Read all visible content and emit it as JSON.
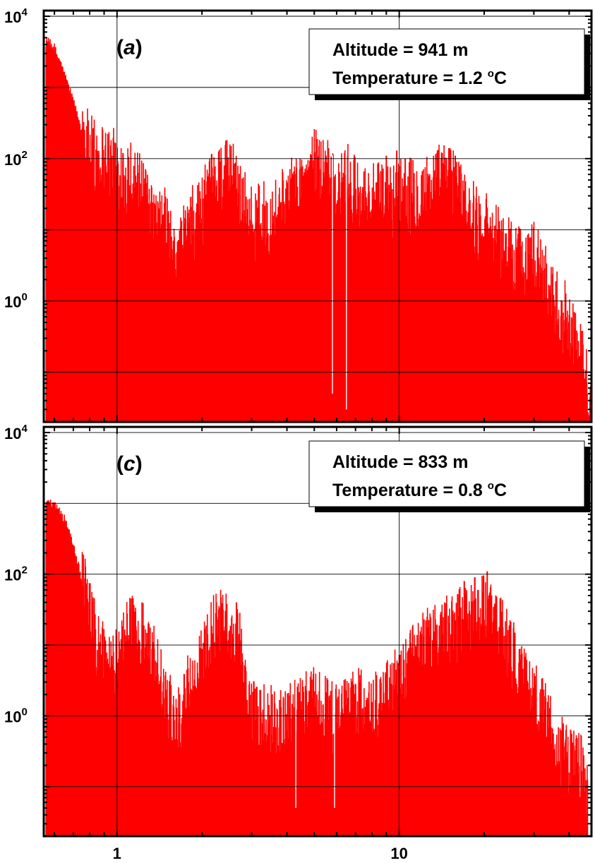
{
  "chart_data": [
    {
      "type": "bar",
      "panel_label": "a",
      "annotation": {
        "altitude_text": "Altitude = 941 m",
        "temperature_prefix": "Temperature = 1.2 ",
        "temperature_sup": "o",
        "temperature_suffix": "C"
      },
      "x_scale": "log",
      "xlim": [
        0.55,
        48
      ],
      "y_scale": "log",
      "ylim": [
        0.02,
        12000
      ],
      "grid": true,
      "ytick_labels": [
        {
          "value": 10000,
          "base": "10",
          "exp": "4"
        },
        {
          "value": 100,
          "base": "10",
          "exp": "2"
        },
        {
          "value": 1,
          "base": "10",
          "exp": "0"
        }
      ],
      "envelope": [
        {
          "x": 0.56,
          "y": 4500
        },
        {
          "x": 0.6,
          "y": 3500
        },
        {
          "x": 0.65,
          "y": 1500
        },
        {
          "x": 0.7,
          "y": 600
        },
        {
          "x": 0.75,
          "y": 250
        },
        {
          "x": 0.8,
          "y": 120
        },
        {
          "x": 0.9,
          "y": 100
        },
        {
          "x": 1.0,
          "y": 70
        },
        {
          "x": 1.1,
          "y": 60
        },
        {
          "x": 1.2,
          "y": 35
        },
        {
          "x": 1.3,
          "y": 15
        },
        {
          "x": 1.4,
          "y": 10
        },
        {
          "x": 1.5,
          "y": 12
        },
        {
          "x": 1.6,
          "y": 3
        },
        {
          "x": 1.8,
          "y": 10
        },
        {
          "x": 2.0,
          "y": 20
        },
        {
          "x": 2.3,
          "y": 50
        },
        {
          "x": 2.6,
          "y": 60
        },
        {
          "x": 3.0,
          "y": 12
        },
        {
          "x": 3.5,
          "y": 15
        },
        {
          "x": 4.0,
          "y": 25
        },
        {
          "x": 4.5,
          "y": 40
        },
        {
          "x": 5.0,
          "y": 80
        },
        {
          "x": 5.5,
          "y": 60
        },
        {
          "x": 6.0,
          "y": 25
        },
        {
          "x": 6.5,
          "y": 50
        },
        {
          "x": 7.0,
          "y": 30
        },
        {
          "x": 8.0,
          "y": 25
        },
        {
          "x": 9.0,
          "y": 25
        },
        {
          "x": 10.0,
          "y": 30
        },
        {
          "x": 12.0,
          "y": 30
        },
        {
          "x": 14.0,
          "y": 50
        },
        {
          "x": 16.0,
          "y": 40
        },
        {
          "x": 18.0,
          "y": 15
        },
        {
          "x": 20.0,
          "y": 12
        },
        {
          "x": 25.0,
          "y": 4
        },
        {
          "x": 30.0,
          "y": 4
        },
        {
          "x": 35.0,
          "y": 1
        },
        {
          "x": 40.0,
          "y": 0.5
        },
        {
          "x": 45.0,
          "y": 0.1
        },
        {
          "x": 48.0,
          "y": 0.03
        }
      ],
      "peaks": [
        {
          "x": 1.05,
          "y": 120
        },
        {
          "x": 2.4,
          "y": 80
        },
        {
          "x": 2.6,
          "y": 85
        },
        {
          "x": 5.0,
          "y": 120
        },
        {
          "x": 5.2,
          "y": 150
        },
        {
          "x": 5.5,
          "y": 110
        },
        {
          "x": 9.0,
          "y": 110
        },
        {
          "x": 9.8,
          "y": 130
        },
        {
          "x": 10.5,
          "y": 100
        },
        {
          "x": 15.0,
          "y": 140
        },
        {
          "x": 15.8,
          "y": 110
        }
      ],
      "dips": [
        {
          "x": 5.8,
          "y": 0.05
        },
        {
          "x": 6.5,
          "y": 0.03
        }
      ]
    },
    {
      "type": "bar",
      "panel_label": "c",
      "annotation": {
        "altitude_text": "Altitude = 833 m",
        "temperature_prefix": "Temperature = 0.8 ",
        "temperature_sup": "o",
        "temperature_suffix": "C"
      },
      "x_scale": "log",
      "xlim": [
        0.55,
        48
      ],
      "y_scale": "log",
      "ylim": [
        0.02,
        12000
      ],
      "grid": true,
      "xtick_labels": [
        {
          "value": 1,
          "text": "1"
        },
        {
          "value": 10,
          "text": "10"
        }
      ],
      "ytick_labels": [
        {
          "value": 10000,
          "base": "10",
          "exp": "4"
        },
        {
          "value": 100,
          "base": "10",
          "exp": "2"
        },
        {
          "value": 1,
          "base": "10",
          "exp": "0"
        }
      ],
      "envelope": [
        {
          "x": 0.56,
          "y": 1000
        },
        {
          "x": 0.6,
          "y": 900
        },
        {
          "x": 0.65,
          "y": 600
        },
        {
          "x": 0.7,
          "y": 250
        },
        {
          "x": 0.75,
          "y": 80
        },
        {
          "x": 0.8,
          "y": 25
        },
        {
          "x": 0.85,
          "y": 10
        },
        {
          "x": 0.95,
          "y": 5
        },
        {
          "x": 1.0,
          "y": 5
        },
        {
          "x": 1.1,
          "y": 15
        },
        {
          "x": 1.2,
          "y": 15
        },
        {
          "x": 1.3,
          "y": 8
        },
        {
          "x": 1.4,
          "y": 4
        },
        {
          "x": 1.5,
          "y": 2
        },
        {
          "x": 1.6,
          "y": 0.5
        },
        {
          "x": 1.8,
          "y": 3
        },
        {
          "x": 2.0,
          "y": 5
        },
        {
          "x": 2.2,
          "y": 15
        },
        {
          "x": 2.5,
          "y": 20
        },
        {
          "x": 2.7,
          "y": 15
        },
        {
          "x": 2.9,
          "y": 1
        },
        {
          "x": 3.5,
          "y": 0.8
        },
        {
          "x": 4.0,
          "y": 0.8
        },
        {
          "x": 5.0,
          "y": 1.5
        },
        {
          "x": 6.0,
          "y": 0.8
        },
        {
          "x": 7.0,
          "y": 1.5
        },
        {
          "x": 8.0,
          "y": 1
        },
        {
          "x": 9.0,
          "y": 2
        },
        {
          "x": 10.0,
          "y": 3
        },
        {
          "x": 12.0,
          "y": 8
        },
        {
          "x": 14.0,
          "y": 15
        },
        {
          "x": 16.0,
          "y": 20
        },
        {
          "x": 18.0,
          "y": 25
        },
        {
          "x": 20.0,
          "y": 30
        },
        {
          "x": 23.0,
          "y": 15
        },
        {
          "x": 26.0,
          "y": 5
        },
        {
          "x": 30.0,
          "y": 2
        },
        {
          "x": 35.0,
          "y": 0.5
        },
        {
          "x": 40.0,
          "y": 0.2
        },
        {
          "x": 45.0,
          "y": 0.15
        },
        {
          "x": 46.5,
          "y": 0.1
        }
      ],
      "peaks": [
        {
          "x": 2.25,
          "y": 35
        },
        {
          "x": 2.65,
          "y": 40
        },
        {
          "x": 17.0,
          "y": 80
        },
        {
          "x": 19.0,
          "y": 60
        },
        {
          "x": 20.5,
          "y": 110
        },
        {
          "x": 22.0,
          "y": 50
        }
      ],
      "dips": [
        {
          "x": 5.9,
          "y": 0.05
        },
        {
          "x": 4.3,
          "y": 0.05
        }
      ]
    }
  ]
}
